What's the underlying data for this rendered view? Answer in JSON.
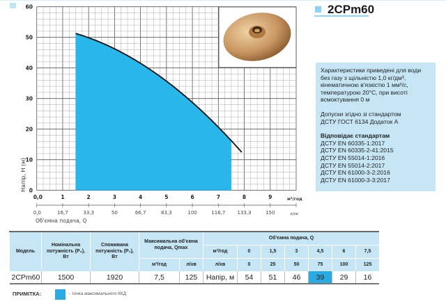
{
  "product": {
    "title": "2CPm60"
  },
  "info": {
    "p1": "Характеристики приведені для води без газу з щільністю 1,0 кг/дм³, кінематичною в'язкістю 1 мм²/с, температурою 20°С, при висоті всмоктування 0 м",
    "p2a": "Допуски згідно зі стандартом",
    "p2b": "ДСТУ ГОСТ 6134 Додаток А",
    "standards_title": "Відповідає стандартам",
    "standards": [
      "ДСТУ EN 60335-1:2017",
      "ДСТУ EN 60335-2-41:2015",
      "ДСТУ EN 55014-1:2016",
      "ДСТУ EN 55014-2:2017",
      "ДСТУ EN 61000-3-2:2016",
      "ДСТУ EN 61000-3-3:2017"
    ]
  },
  "chart_data": {
    "type": "area",
    "ylabel": "Напір, H (м)",
    "xlabel": "Об'ємна подача, Q",
    "x_unit": "м³/год",
    "x2_unit": "л/хв",
    "xlim": [
      0,
      10
    ],
    "ylim": [
      0,
      60
    ],
    "x_ticks": [
      "0,0",
      "1",
      "2",
      "3",
      "4",
      "5",
      "6",
      "7",
      "8",
      "9"
    ],
    "x2_ticks": [
      "0,0",
      "16,7",
      "33,3",
      "50",
      "66,7",
      "83,3",
      "100",
      "116,7",
      "133,3",
      "150"
    ],
    "y_ticks": [
      "0",
      "10",
      "20",
      "30",
      "40",
      "50",
      "60"
    ],
    "grid": true,
    "curve_range": [
      1.5,
      7.9
    ],
    "fill_range": [
      1.5,
      7.5
    ],
    "series": [
      {
        "name": "2CPm60",
        "x": [
          0,
          1.5,
          3,
          4.5,
          6,
          7.5
        ],
        "y": [
          54,
          51,
          46,
          39,
          29,
          16
        ]
      }
    ],
    "colors": {
      "fill": "#29b6ea",
      "curve": "#111111"
    }
  },
  "table": {
    "headers": {
      "model": "Модель",
      "p2": "Номінальна потужність (P₂), Вт",
      "p1": "Споживана потужність (P₁), Вт",
      "qmax": "Максимальна об'ємна подача, Qmax",
      "qmax_m3": "м³/год",
      "qmax_l": "л/хв",
      "flow": "Об'ємна подача, Q",
      "row_m3": "м³/год",
      "row_l": "л/хв"
    },
    "flow_m3": [
      "0",
      "1,5",
      "3",
      "4,5",
      "6",
      "7,5"
    ],
    "flow_l": [
      "0",
      "25",
      "50",
      "75",
      "100",
      "125"
    ],
    "row": {
      "model": "2CPm60",
      "p2": "1500",
      "p1": "1920",
      "qmax_m3": "7,5",
      "qmax_l": "125",
      "label": "Напір, м",
      "heads": [
        "54",
        "51",
        "46",
        "39",
        "29",
        "16"
      ]
    },
    "highlight_index": 3
  },
  "note": {
    "label": "ПРИМІТКА:",
    "text": "- точка максимального ККД"
  }
}
